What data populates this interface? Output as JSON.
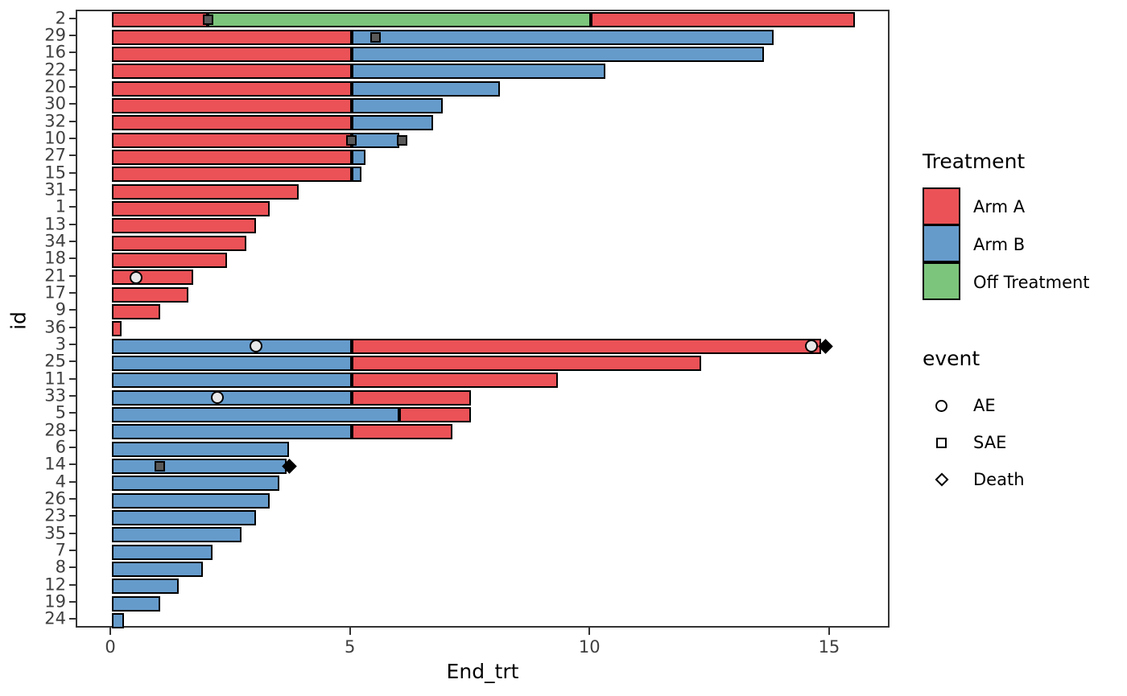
{
  "chart_data": {
    "type": "bar",
    "subtype": "swimmer-plot",
    "orientation": "horizontal",
    "title": "",
    "xlabel": "End_trt",
    "ylabel": "id",
    "x_ticks": [
      0,
      5,
      10,
      15
    ],
    "xlim": [
      -0.72,
      16.27
    ],
    "grid": false,
    "legend_position": "right",
    "treatment_colors": {
      "Arm A": "#eb5257",
      "Arm B": "#659bcb",
      "Off Treatment": "#7cc57c"
    },
    "event_styles": {
      "AE": {
        "shape": "circle",
        "fill": "#e8e8e8",
        "stroke": "#000000"
      },
      "SAE": {
        "shape": "square",
        "fill": "#595959",
        "stroke": "#000000"
      },
      "Death": {
        "shape": "diamond",
        "fill": "#000000",
        "stroke": "#000000"
      }
    },
    "legend": {
      "treatment_title": "Treatment",
      "treatments": [
        {
          "label": "Arm A",
          "color": "#eb5257"
        },
        {
          "label": "Arm B",
          "color": "#659bcb"
        },
        {
          "label": "Off Treatment",
          "color": "#7cc57c"
        }
      ],
      "event_title": "event",
      "events": [
        {
          "label": "AE",
          "shape": "circle"
        },
        {
          "label": "SAE",
          "shape": "square"
        },
        {
          "label": "Death",
          "shape": "diamond"
        }
      ]
    },
    "rows": [
      {
        "id": "2",
        "segments": [
          {
            "treatment": "Arm A",
            "start": 0,
            "end": 2
          },
          {
            "treatment": "Off Treatment",
            "start": 2,
            "end": 10
          },
          {
            "treatment": "Arm A",
            "start": 10,
            "end": 15.5
          }
        ],
        "events": [
          {
            "type": "SAE",
            "x": 2
          }
        ]
      },
      {
        "id": "29",
        "segments": [
          {
            "treatment": "Arm A",
            "start": 0,
            "end": 5
          },
          {
            "treatment": "Arm B",
            "start": 5,
            "end": 13.8
          }
        ],
        "events": [
          {
            "type": "SAE",
            "x": 5.5
          }
        ]
      },
      {
        "id": "16",
        "segments": [
          {
            "treatment": "Arm A",
            "start": 0,
            "end": 5
          },
          {
            "treatment": "Arm B",
            "start": 5,
            "end": 13.6
          }
        ],
        "events": []
      },
      {
        "id": "22",
        "segments": [
          {
            "treatment": "Arm A",
            "start": 0,
            "end": 5
          },
          {
            "treatment": "Arm B",
            "start": 5,
            "end": 10.3
          }
        ],
        "events": []
      },
      {
        "id": "20",
        "segments": [
          {
            "treatment": "Arm A",
            "start": 0,
            "end": 5
          },
          {
            "treatment": "Arm B",
            "start": 5,
            "end": 8.1
          }
        ],
        "events": []
      },
      {
        "id": "30",
        "segments": [
          {
            "treatment": "Arm A",
            "start": 0,
            "end": 5
          },
          {
            "treatment": "Arm B",
            "start": 5,
            "end": 6.9
          }
        ],
        "events": []
      },
      {
        "id": "32",
        "segments": [
          {
            "treatment": "Arm A",
            "start": 0,
            "end": 5
          },
          {
            "treatment": "Arm B",
            "start": 5,
            "end": 6.7
          }
        ],
        "events": []
      },
      {
        "id": "10",
        "segments": [
          {
            "treatment": "Arm A",
            "start": 0,
            "end": 5
          },
          {
            "treatment": "Arm B",
            "start": 5,
            "end": 6
          }
        ],
        "events": [
          {
            "type": "SAE",
            "x": 5
          },
          {
            "type": "SAE",
            "x": 6.05
          }
        ]
      },
      {
        "id": "27",
        "segments": [
          {
            "treatment": "Arm A",
            "start": 0,
            "end": 5
          },
          {
            "treatment": "Arm B",
            "start": 5,
            "end": 5.3
          }
        ],
        "events": []
      },
      {
        "id": "15",
        "segments": [
          {
            "treatment": "Arm A",
            "start": 0,
            "end": 5
          },
          {
            "treatment": "Arm B",
            "start": 5,
            "end": 5.2
          }
        ],
        "events": []
      },
      {
        "id": "31",
        "segments": [
          {
            "treatment": "Arm A",
            "start": 0,
            "end": 3.9
          }
        ],
        "events": []
      },
      {
        "id": "1",
        "segments": [
          {
            "treatment": "Arm A",
            "start": 0,
            "end": 3.3
          }
        ],
        "events": []
      },
      {
        "id": "13",
        "segments": [
          {
            "treatment": "Arm A",
            "start": 0,
            "end": 3
          }
        ],
        "events": []
      },
      {
        "id": "34",
        "segments": [
          {
            "treatment": "Arm A",
            "start": 0,
            "end": 2.8
          }
        ],
        "events": []
      },
      {
        "id": "18",
        "segments": [
          {
            "treatment": "Arm A",
            "start": 0,
            "end": 2.4
          }
        ],
        "events": []
      },
      {
        "id": "21",
        "segments": [
          {
            "treatment": "Arm A",
            "start": 0,
            "end": 1.7
          }
        ],
        "events": [
          {
            "type": "AE",
            "x": 0.5
          }
        ]
      },
      {
        "id": "17",
        "segments": [
          {
            "treatment": "Arm A",
            "start": 0,
            "end": 1.6
          }
        ],
        "events": []
      },
      {
        "id": "9",
        "segments": [
          {
            "treatment": "Arm A",
            "start": 0,
            "end": 1
          }
        ],
        "events": []
      },
      {
        "id": "36",
        "segments": [
          {
            "treatment": "Arm A",
            "start": 0,
            "end": 0.2
          }
        ],
        "events": []
      },
      {
        "id": "3",
        "segments": [
          {
            "treatment": "Arm B",
            "start": 0,
            "end": 5
          },
          {
            "treatment": "Arm A",
            "start": 5,
            "end": 14.8
          }
        ],
        "events": [
          {
            "type": "AE",
            "x": 3
          },
          {
            "type": "AE",
            "x": 14.6
          },
          {
            "type": "Death",
            "x": 14.9
          }
        ]
      },
      {
        "id": "25",
        "segments": [
          {
            "treatment": "Arm B",
            "start": 0,
            "end": 5
          },
          {
            "treatment": "Arm A",
            "start": 5,
            "end": 12.3
          }
        ],
        "events": []
      },
      {
        "id": "11",
        "segments": [
          {
            "treatment": "Arm B",
            "start": 0,
            "end": 5
          },
          {
            "treatment": "Arm A",
            "start": 5,
            "end": 9.3
          }
        ],
        "events": []
      },
      {
        "id": "33",
        "segments": [
          {
            "treatment": "Arm B",
            "start": 0,
            "end": 5
          },
          {
            "treatment": "Arm A",
            "start": 5,
            "end": 7.5
          }
        ],
        "events": [
          {
            "type": "AE",
            "x": 2.2
          }
        ]
      },
      {
        "id": "5",
        "segments": [
          {
            "treatment": "Arm B",
            "start": 0,
            "end": 6
          },
          {
            "treatment": "Arm A",
            "start": 6,
            "end": 7.5
          }
        ],
        "events": []
      },
      {
        "id": "28",
        "segments": [
          {
            "treatment": "Arm B",
            "start": 0,
            "end": 5
          },
          {
            "treatment": "Arm A",
            "start": 5,
            "end": 7.1
          }
        ],
        "events": []
      },
      {
        "id": "6",
        "segments": [
          {
            "treatment": "Arm B",
            "start": 0,
            "end": 3.7
          }
        ],
        "events": []
      },
      {
        "id": "14",
        "segments": [
          {
            "treatment": "Arm B",
            "start": 0,
            "end": 3.65
          }
        ],
        "events": [
          {
            "type": "SAE",
            "x": 1
          },
          {
            "type": "Death",
            "x": 3.7
          }
        ]
      },
      {
        "id": "4",
        "segments": [
          {
            "treatment": "Arm B",
            "start": 0,
            "end": 3.5
          }
        ],
        "events": []
      },
      {
        "id": "26",
        "segments": [
          {
            "treatment": "Arm B",
            "start": 0,
            "end": 3.3
          }
        ],
        "events": []
      },
      {
        "id": "23",
        "segments": [
          {
            "treatment": "Arm B",
            "start": 0,
            "end": 3
          }
        ],
        "events": []
      },
      {
        "id": "35",
        "segments": [
          {
            "treatment": "Arm B",
            "start": 0,
            "end": 2.7
          }
        ],
        "events": []
      },
      {
        "id": "7",
        "segments": [
          {
            "treatment": "Arm B",
            "start": 0,
            "end": 2.1
          }
        ],
        "events": []
      },
      {
        "id": "8",
        "segments": [
          {
            "treatment": "Arm B",
            "start": 0,
            "end": 1.9
          }
        ],
        "events": []
      },
      {
        "id": "12",
        "segments": [
          {
            "treatment": "Arm B",
            "start": 0,
            "end": 1.4
          }
        ],
        "events": []
      },
      {
        "id": "19",
        "segments": [
          {
            "treatment": "Arm B",
            "start": 0,
            "end": 1
          }
        ],
        "events": []
      },
      {
        "id": "24",
        "segments": [
          {
            "treatment": "Arm B",
            "start": 0,
            "end": 0.25
          }
        ],
        "events": []
      }
    ]
  }
}
